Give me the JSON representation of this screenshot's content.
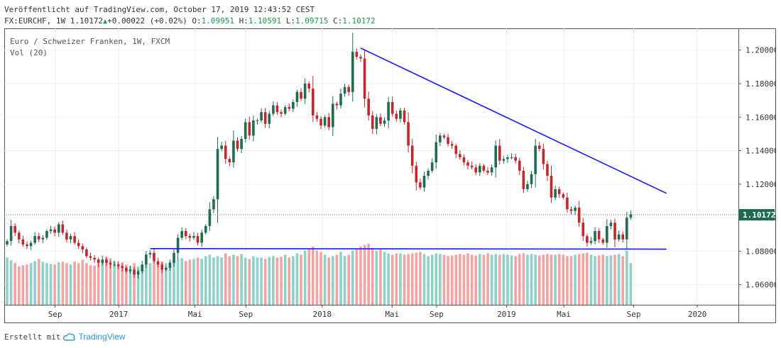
{
  "header": {
    "published": "Veröffentlicht auf TradingView.com, October 17, 2019 12:43:52 CEST",
    "symbol": "FX:EURCHF, 1W",
    "last": "1.10172",
    "change": "+0.00022 (+0.02%)",
    "o_label": "O:",
    "o": "1.09951",
    "h_label": "H:",
    "h": "1.10591",
    "l_label": "L:",
    "l": "1.09715",
    "c_label": "C:",
    "c": "1.10172"
  },
  "legend": {
    "instrument": "Euro / Schweizer Franken, 1W, FXCM",
    "volume": "Vol (20)"
  },
  "footer": {
    "created_with": "Erstellt mit",
    "brand": "TradingView"
  },
  "colors": {
    "up": "#1f6d4f",
    "down": "#c2272d",
    "vol_up": "#8fd0c9",
    "vol_down": "#f4a3a3",
    "trendline": "#1a1aff",
    "last_price_bg": "#1f6d4f"
  },
  "chart_data": {
    "type": "candlestick",
    "instrument": "Euro / Schweizer Franken, 1W, FXCM",
    "ylim": [
      1.048,
      1.213
    ],
    "y_ticks": [
      "1.06000",
      "1.08000",
      "1.10000",
      "1.12000",
      "1.14000",
      "1.16000",
      "1.18000",
      "1.20000"
    ],
    "x_ticks": [
      {
        "label": "Sep",
        "t": 0.08
      },
      {
        "label": "2017",
        "t": 0.18
      },
      {
        "label": "Mai",
        "t": 0.3
      },
      {
        "label": "Sep",
        "t": 0.38
      },
      {
        "label": "2018",
        "t": 0.5
      },
      {
        "label": "Mai",
        "t": 0.61
      },
      {
        "label": "Sep",
        "t": 0.68
      },
      {
        "label": "2019",
        "t": 0.79
      },
      {
        "label": "Mai",
        "t": 0.88
      },
      {
        "label": "Sep",
        "t": 0.99
      },
      {
        "label": "2020",
        "t": 1.09
      }
    ],
    "last_price": "1.10172",
    "closes": [
      1.086,
      1.095,
      1.091,
      1.087,
      1.084,
      1.083,
      1.085,
      1.089,
      1.087,
      1.088,
      1.092,
      1.093,
      1.091,
      1.096,
      1.091,
      1.087,
      1.089,
      1.085,
      1.083,
      1.081,
      1.077,
      1.076,
      1.075,
      1.073,
      1.075,
      1.073,
      1.072,
      1.072,
      1.071,
      1.07,
      1.068,
      1.069,
      1.066,
      1.068,
      1.072,
      1.078,
      1.079,
      1.074,
      1.072,
      1.069,
      1.07,
      1.073,
      1.079,
      1.088,
      1.092,
      1.089,
      1.088,
      1.089,
      1.085,
      1.091,
      1.095,
      1.105,
      1.111,
      1.141,
      1.143,
      1.135,
      1.133,
      1.146,
      1.141,
      1.147,
      1.157,
      1.149,
      1.158,
      1.158,
      1.163,
      1.156,
      1.162,
      1.167,
      1.163,
      1.162,
      1.166,
      1.165,
      1.169,
      1.175,
      1.171,
      1.18,
      1.177,
      1.161,
      1.159,
      1.155,
      1.16,
      1.154,
      1.168,
      1.167,
      1.174,
      1.178,
      1.175,
      1.199,
      1.196,
      1.195,
      1.171,
      1.161,
      1.153,
      1.16,
      1.156,
      1.158,
      1.169,
      1.162,
      1.159,
      1.164,
      1.157,
      1.143,
      1.131,
      1.121,
      1.118,
      1.125,
      1.128,
      1.133,
      1.145,
      1.149,
      1.148,
      1.144,
      1.143,
      1.138,
      1.136,
      1.133,
      1.131,
      1.13,
      1.127,
      1.131,
      1.128,
      1.127,
      1.13,
      1.143,
      1.134,
      1.135,
      1.136,
      1.136,
      1.134,
      1.128,
      1.117,
      1.12,
      1.126,
      1.143,
      1.141,
      1.132,
      1.125,
      1.112,
      1.117,
      1.114,
      1.112,
      1.105,
      1.104,
      1.106,
      1.097,
      1.089,
      1.085,
      1.086,
      1.092,
      1.087,
      1.085,
      1.095,
      1.097,
      1.087,
      1.09,
      1.087,
      1.1,
      1.102
    ],
    "volume": [
      0.68,
      0.64,
      0.6,
      0.55,
      0.57,
      0.58,
      0.6,
      0.63,
      0.66,
      0.62,
      0.6,
      0.59,
      0.58,
      0.61,
      0.62,
      0.6,
      0.58,
      0.62,
      0.6,
      0.65,
      0.6,
      0.57,
      0.56,
      0.6,
      0.63,
      0.68,
      0.67,
      0.62,
      0.6,
      0.61,
      0.58,
      0.56,
      0.6,
      0.55,
      0.58,
      0.6,
      0.6,
      0.62,
      0.62,
      0.62,
      0.6,
      0.62,
      0.63,
      0.65,
      0.67,
      0.63,
      0.65,
      0.66,
      0.68,
      0.66,
      0.7,
      0.72,
      0.68,
      0.7,
      0.68,
      0.74,
      0.7,
      0.72,
      0.7,
      0.73,
      0.68,
      0.66,
      0.7,
      0.68,
      0.68,
      0.66,
      0.69,
      0.7,
      0.68,
      0.69,
      0.72,
      0.68,
      0.7,
      0.74,
      0.72,
      0.78,
      0.8,
      0.84,
      0.78,
      0.76,
      0.72,
      0.68,
      0.7,
      0.72,
      0.76,
      0.7,
      0.72,
      0.78,
      0.8,
      0.84,
      0.86,
      0.88,
      0.82,
      0.78,
      0.8,
      0.76,
      0.74,
      0.72,
      0.74,
      0.74,
      0.72,
      0.73,
      0.74,
      0.75,
      0.76,
      0.73,
      0.7,
      0.72,
      0.74,
      0.73,
      0.72,
      0.7,
      0.71,
      0.72,
      0.73,
      0.72,
      0.74,
      0.72,
      0.71,
      0.73,
      0.72,
      0.74,
      0.72,
      0.73,
      0.72,
      0.73,
      0.72,
      0.71,
      0.7,
      0.73,
      0.74,
      0.72,
      0.73,
      0.72,
      0.71,
      0.72,
      0.73,
      0.72,
      0.72,
      0.73,
      0.72,
      0.7,
      0.7,
      0.72,
      0.73,
      0.74,
      0.75,
      0.72,
      0.7,
      0.71,
      0.72,
      0.7,
      0.71,
      0.72,
      0.73,
      0.7,
      0.78,
      0.6
    ],
    "resistance_line": {
      "from_index": 89,
      "from_price": 1.2012,
      "to_index": 166,
      "to_price": 1.1145
    },
    "support_line": {
      "from_index": 36,
      "from_price": 1.0815,
      "to_index": 166,
      "to_price": 1.0812
    }
  }
}
